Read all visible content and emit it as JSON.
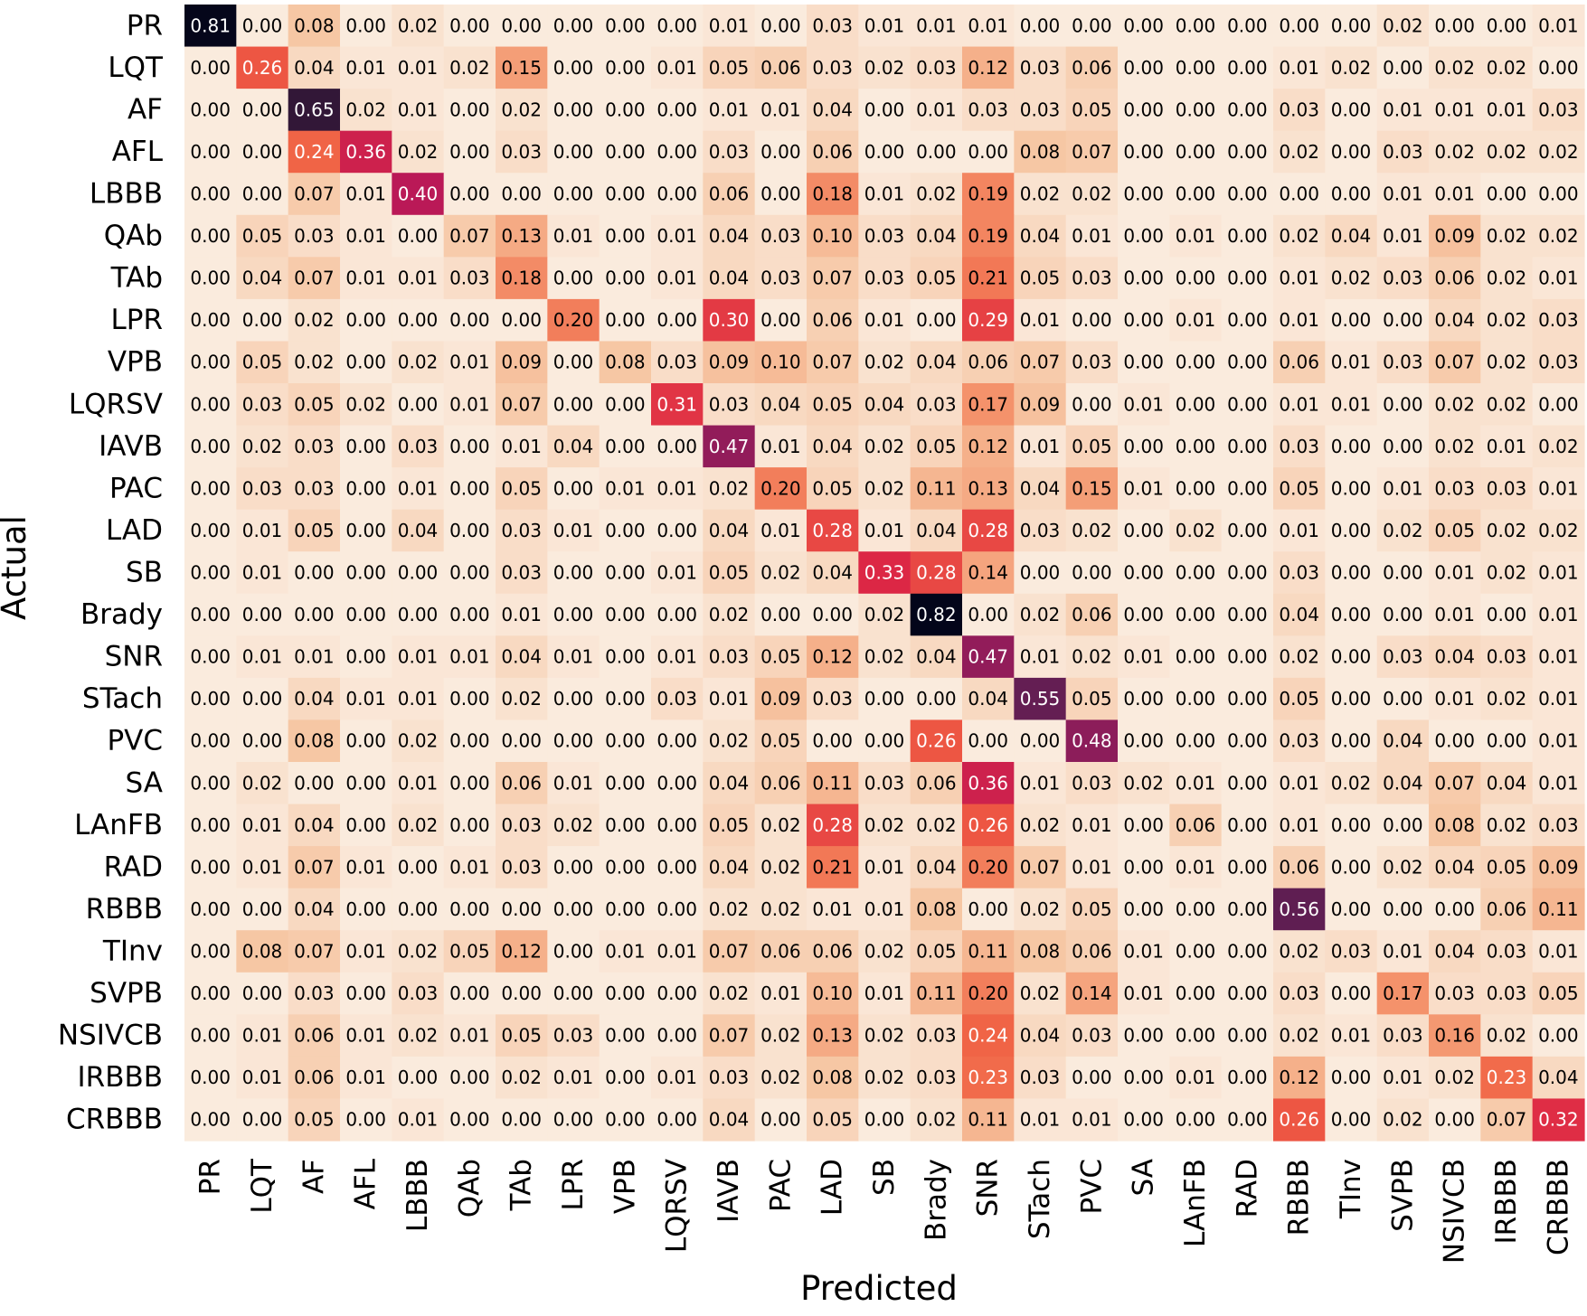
{
  "chart_data": {
    "type": "heatmap",
    "title": "",
    "xlabel": "Predicted",
    "ylabel": "Actual",
    "x_categories": [
      "PR",
      "LQT",
      "AF",
      "AFL",
      "LBBB",
      "QAb",
      "TAb",
      "LPR",
      "VPB",
      "LQRSV",
      "IAVB",
      "PAC",
      "LAD",
      "SB",
      "Brady",
      "SNR",
      "STach",
      "PVC",
      "SA",
      "LAnFB",
      "RAD",
      "RBBB",
      "TInv",
      "SVPB",
      "NSIVCB",
      "IRBBB",
      "CRBBB"
    ],
    "y_categories": [
      "PR",
      "LQT",
      "AF",
      "AFL",
      "LBBB",
      "QAb",
      "TAb",
      "LPR",
      "VPB",
      "LQRSV",
      "IAVB",
      "PAC",
      "LAD",
      "SB",
      "Brady",
      "SNR",
      "STach",
      "PVC",
      "SA",
      "LAnFB",
      "RAD",
      "RBBB",
      "TInv",
      "SVPB",
      "NSIVCB",
      "IRBBB",
      "CRBBB"
    ],
    "value_format": "2 decimals",
    "colormap": "rocket_r",
    "vmin": 0,
    "vmax": 0.82,
    "values": [
      [
        0.81,
        0.0,
        0.08,
        0.0,
        0.02,
        0.0,
        0.0,
        0.0,
        0.0,
        0.0,
        0.01,
        0.0,
        0.03,
        0.01,
        0.01,
        0.01,
        0.0,
        0.0,
        0.0,
        0.0,
        0.0,
        0.0,
        0.0,
        0.02,
        0.0,
        0.0,
        0.01
      ],
      [
        0.0,
        0.26,
        0.04,
        0.01,
        0.01,
        0.02,
        0.15,
        0.0,
        0.0,
        0.01,
        0.05,
        0.06,
        0.03,
        0.02,
        0.03,
        0.12,
        0.03,
        0.06,
        0.0,
        0.0,
        0.0,
        0.01,
        0.02,
        0.0,
        0.02,
        0.02,
        0.0
      ],
      [
        0.0,
        0.0,
        0.65,
        0.02,
        0.01,
        0.0,
        0.02,
        0.0,
        0.0,
        0.0,
        0.01,
        0.01,
        0.04,
        0.0,
        0.01,
        0.03,
        0.03,
        0.05,
        0.0,
        0.0,
        0.0,
        0.03,
        0.0,
        0.01,
        0.01,
        0.01,
        0.03
      ],
      [
        0.0,
        0.0,
        0.24,
        0.36,
        0.02,
        0.0,
        0.03,
        0.0,
        0.0,
        0.0,
        0.03,
        0.0,
        0.06,
        0.0,
        0.0,
        0.0,
        0.08,
        0.07,
        0.0,
        0.0,
        0.0,
        0.02,
        0.0,
        0.03,
        0.02,
        0.02,
        0.02
      ],
      [
        0.0,
        0.0,
        0.07,
        0.01,
        0.4,
        0.0,
        0.0,
        0.0,
        0.0,
        0.0,
        0.06,
        0.0,
        0.18,
        0.01,
        0.02,
        0.19,
        0.02,
        0.02,
        0.0,
        0.0,
        0.0,
        0.0,
        0.0,
        0.01,
        0.01,
        0.0,
        0.0
      ],
      [
        0.0,
        0.05,
        0.03,
        0.01,
        0.0,
        0.07,
        0.13,
        0.01,
        0.0,
        0.01,
        0.04,
        0.03,
        0.1,
        0.03,
        0.04,
        0.19,
        0.04,
        0.01,
        0.0,
        0.01,
        0.0,
        0.02,
        0.04,
        0.01,
        0.09,
        0.02,
        0.02
      ],
      [
        0.0,
        0.04,
        0.07,
        0.01,
        0.01,
        0.03,
        0.18,
        0.0,
        0.0,
        0.01,
        0.04,
        0.03,
        0.07,
        0.03,
        0.05,
        0.21,
        0.05,
        0.03,
        0.0,
        0.0,
        0.0,
        0.01,
        0.02,
        0.03,
        0.06,
        0.02,
        0.01
      ],
      [
        0.0,
        0.0,
        0.02,
        0.0,
        0.0,
        0.0,
        0.0,
        0.2,
        0.0,
        0.0,
        0.3,
        0.0,
        0.06,
        0.01,
        0.0,
        0.29,
        0.01,
        0.0,
        0.0,
        0.01,
        0.0,
        0.01,
        0.0,
        0.0,
        0.04,
        0.02,
        0.03
      ],
      [
        0.0,
        0.05,
        0.02,
        0.0,
        0.02,
        0.01,
        0.09,
        0.0,
        0.08,
        0.03,
        0.09,
        0.1,
        0.07,
        0.02,
        0.04,
        0.06,
        0.07,
        0.03,
        0.0,
        0.0,
        0.0,
        0.06,
        0.01,
        0.03,
        0.07,
        0.02,
        0.03
      ],
      [
        0.0,
        0.03,
        0.05,
        0.02,
        0.0,
        0.01,
        0.07,
        0.0,
        0.0,
        0.31,
        0.03,
        0.04,
        0.05,
        0.04,
        0.03,
        0.17,
        0.09,
        0.0,
        0.01,
        0.0,
        0.0,
        0.01,
        0.01,
        0.0,
        0.02,
        0.02,
        0.0
      ],
      [
        0.0,
        0.02,
        0.03,
        0.0,
        0.03,
        0.0,
        0.01,
        0.04,
        0.0,
        0.0,
        0.47,
        0.01,
        0.04,
        0.02,
        0.05,
        0.12,
        0.01,
        0.05,
        0.0,
        0.0,
        0.0,
        0.03,
        0.0,
        0.0,
        0.02,
        0.01,
        0.02
      ],
      [
        0.0,
        0.03,
        0.03,
        0.0,
        0.01,
        0.0,
        0.05,
        0.0,
        0.01,
        0.01,
        0.02,
        0.2,
        0.05,
        0.02,
        0.11,
        0.13,
        0.04,
        0.15,
        0.01,
        0.0,
        0.0,
        0.05,
        0.0,
        0.01,
        0.03,
        0.03,
        0.01
      ],
      [
        0.0,
        0.01,
        0.05,
        0.0,
        0.04,
        0.0,
        0.03,
        0.01,
        0.0,
        0.0,
        0.04,
        0.01,
        0.28,
        0.01,
        0.04,
        0.28,
        0.03,
        0.02,
        0.0,
        0.02,
        0.0,
        0.01,
        0.0,
        0.02,
        0.05,
        0.02,
        0.02
      ],
      [
        0.0,
        0.01,
        0.0,
        0.0,
        0.0,
        0.0,
        0.03,
        0.0,
        0.0,
        0.01,
        0.05,
        0.02,
        0.04,
        0.33,
        0.28,
        0.14,
        0.0,
        0.0,
        0.0,
        0.0,
        0.0,
        0.03,
        0.0,
        0.0,
        0.01,
        0.02,
        0.01
      ],
      [
        0.0,
        0.0,
        0.0,
        0.0,
        0.0,
        0.0,
        0.01,
        0.0,
        0.0,
        0.0,
        0.02,
        0.0,
        0.0,
        0.02,
        0.82,
        0.0,
        0.02,
        0.06,
        0.0,
        0.0,
        0.0,
        0.04,
        0.0,
        0.0,
        0.01,
        0.0,
        0.01
      ],
      [
        0.0,
        0.01,
        0.01,
        0.0,
        0.01,
        0.01,
        0.04,
        0.01,
        0.0,
        0.01,
        0.03,
        0.05,
        0.12,
        0.02,
        0.04,
        0.47,
        0.01,
        0.02,
        0.01,
        0.0,
        0.0,
        0.02,
        0.0,
        0.03,
        0.04,
        0.03,
        0.01
      ],
      [
        0.0,
        0.0,
        0.04,
        0.01,
        0.01,
        0.0,
        0.02,
        0.0,
        0.0,
        0.03,
        0.01,
        0.09,
        0.03,
        0.0,
        0.0,
        0.04,
        0.55,
        0.05,
        0.0,
        0.0,
        0.0,
        0.05,
        0.0,
        0.0,
        0.01,
        0.02,
        0.01
      ],
      [
        0.0,
        0.0,
        0.08,
        0.0,
        0.02,
        0.0,
        0.0,
        0.0,
        0.0,
        0.0,
        0.02,
        0.05,
        0.0,
        0.0,
        0.26,
        0.0,
        0.0,
        0.48,
        0.0,
        0.0,
        0.0,
        0.03,
        0.0,
        0.04,
        0.0,
        0.0,
        0.01
      ],
      [
        0.0,
        0.02,
        0.0,
        0.0,
        0.01,
        0.0,
        0.06,
        0.01,
        0.0,
        0.0,
        0.04,
        0.06,
        0.11,
        0.03,
        0.06,
        0.36,
        0.01,
        0.03,
        0.02,
        0.01,
        0.0,
        0.01,
        0.02,
        0.04,
        0.07,
        0.04,
        0.01
      ],
      [
        0.0,
        0.01,
        0.04,
        0.0,
        0.02,
        0.0,
        0.03,
        0.02,
        0.0,
        0.0,
        0.05,
        0.02,
        0.28,
        0.02,
        0.02,
        0.26,
        0.02,
        0.01,
        0.0,
        0.06,
        0.0,
        0.01,
        0.0,
        0.0,
        0.08,
        0.02,
        0.03
      ],
      [
        0.0,
        0.01,
        0.07,
        0.01,
        0.0,
        0.01,
        0.03,
        0.0,
        0.0,
        0.0,
        0.04,
        0.02,
        0.21,
        0.01,
        0.04,
        0.2,
        0.07,
        0.01,
        0.0,
        0.01,
        0.0,
        0.06,
        0.0,
        0.02,
        0.04,
        0.05,
        0.09
      ],
      [
        0.0,
        0.0,
        0.04,
        0.0,
        0.0,
        0.0,
        0.0,
        0.0,
        0.0,
        0.0,
        0.02,
        0.02,
        0.01,
        0.01,
        0.08,
        0.0,
        0.02,
        0.05,
        0.0,
        0.0,
        0.0,
        0.56,
        0.0,
        0.0,
        0.0,
        0.06,
        0.11
      ],
      [
        0.0,
        0.08,
        0.07,
        0.01,
        0.02,
        0.05,
        0.12,
        0.0,
        0.01,
        0.01,
        0.07,
        0.06,
        0.06,
        0.02,
        0.05,
        0.11,
        0.08,
        0.06,
        0.01,
        0.0,
        0.0,
        0.02,
        0.03,
        0.01,
        0.04,
        0.03,
        0.01
      ],
      [
        0.0,
        0.0,
        0.03,
        0.0,
        0.03,
        0.0,
        0.0,
        0.0,
        0.0,
        0.0,
        0.02,
        0.01,
        0.1,
        0.01,
        0.11,
        0.2,
        0.02,
        0.14,
        0.01,
        0.0,
        0.0,
        0.03,
        0.0,
        0.17,
        0.03,
        0.03,
        0.05
      ],
      [
        0.0,
        0.01,
        0.06,
        0.01,
        0.02,
        0.01,
        0.05,
        0.03,
        0.0,
        0.0,
        0.07,
        0.02,
        0.13,
        0.02,
        0.03,
        0.24,
        0.04,
        0.03,
        0.0,
        0.0,
        0.0,
        0.02,
        0.01,
        0.03,
        0.16,
        0.02,
        0.0
      ],
      [
        0.0,
        0.01,
        0.06,
        0.01,
        0.0,
        0.0,
        0.02,
        0.01,
        0.0,
        0.01,
        0.03,
        0.02,
        0.08,
        0.02,
        0.03,
        0.23,
        0.03,
        0.0,
        0.0,
        0.01,
        0.0,
        0.12,
        0.0,
        0.01,
        0.02,
        0.23,
        0.04
      ],
      [
        0.0,
        0.0,
        0.05,
        0.0,
        0.01,
        0.0,
        0.0,
        0.0,
        0.0,
        0.0,
        0.04,
        0.0,
        0.05,
        0.0,
        0.02,
        0.11,
        0.01,
        0.01,
        0.0,
        0.0,
        0.0,
        0.26,
        0.0,
        0.02,
        0.0,
        0.07,
        0.32
      ]
    ]
  }
}
